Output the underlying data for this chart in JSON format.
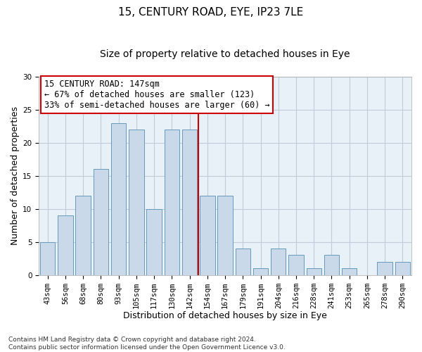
{
  "title": "15, CENTURY ROAD, EYE, IP23 7LE",
  "subtitle": "Size of property relative to detached houses in Eye",
  "xlabel": "Distribution of detached houses by size in Eye",
  "ylabel": "Number of detached properties",
  "bar_labels": [
    "43sqm",
    "56sqm",
    "68sqm",
    "80sqm",
    "93sqm",
    "105sqm",
    "117sqm",
    "130sqm",
    "142sqm",
    "154sqm",
    "167sqm",
    "179sqm",
    "191sqm",
    "204sqm",
    "216sqm",
    "228sqm",
    "241sqm",
    "253sqm",
    "265sqm",
    "278sqm",
    "290sqm"
  ],
  "bar_values": [
    5,
    9,
    12,
    16,
    23,
    22,
    10,
    22,
    22,
    12,
    12,
    4,
    1,
    4,
    3,
    1,
    3,
    1,
    0,
    2,
    2
  ],
  "bar_color": "#c9d9ea",
  "bar_edgecolor": "#6699bb",
  "ylim": [
    0,
    30
  ],
  "yticks": [
    0,
    5,
    10,
    15,
    20,
    25,
    30
  ],
  "grid_color": "#c0ccd8",
  "bg_color": "#e8f0f8",
  "vline_x": 8.5,
  "vline_color": "#cc0000",
  "annotation_title": "15 CENTURY ROAD: 147sqm",
  "annotation_line1": "← 67% of detached houses are smaller (123)",
  "annotation_line2": "33% of semi-detached houses are larger (60) →",
  "annotation_box_color": "#cc0000",
  "footer_line1": "Contains HM Land Registry data © Crown copyright and database right 2024.",
  "footer_line2": "Contains public sector information licensed under the Open Government Licence v3.0.",
  "title_fontsize": 11,
  "subtitle_fontsize": 10,
  "xlabel_fontsize": 9,
  "ylabel_fontsize": 9,
  "annotation_fontsize": 8.5,
  "tick_fontsize": 7.5,
  "footer_fontsize": 6.5
}
